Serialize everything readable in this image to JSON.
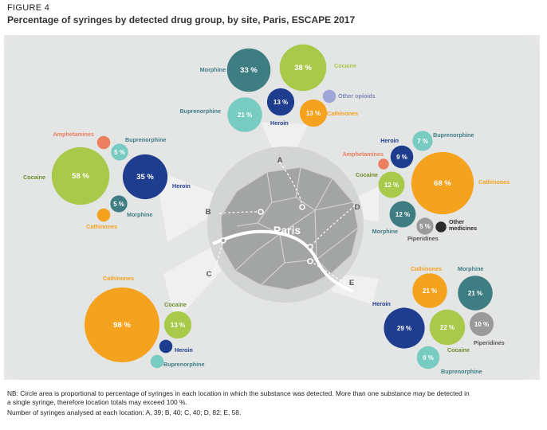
{
  "figure_label": "FIGURE 4",
  "title": "Percentage of syringes by detected drug group, by site, Paris, ESCAPE 2017",
  "map": {
    "city_label": "Paris"
  },
  "notes": {
    "line1": "NB: Circle area is proportional to percentage of syringes in each location in which the substance was detected. More than one substance may be detected in",
    "line2": "a single syringe, therefore location totals may exceed 100 %.",
    "line3": "Number of syringes analysed at each location: A, 39; B, 40; C, 40; D, 82; E, 58."
  },
  "colors": {
    "Morphine": "#3e7d82",
    "Cocaine": "#a8c94a",
    "Buprenorphine": "#78cbc1",
    "Heroin": "#1f3d8e",
    "Cathinones": "#f5a21f",
    "Other opioids": "#9ea7d7",
    "Amphetamines": "#ec7f60",
    "Piperidines": "#9a9a9a",
    "Other medicines": "#2b2b2b"
  },
  "chart_data": {
    "type": "bubble",
    "title": "Percentage of syringes by detected drug group, by site, Paris, ESCAPE 2017",
    "unit": "%",
    "sites": [
      {
        "site": "A",
        "series": [
          {
            "name": "Morphine",
            "value": 33,
            "label": "33 %"
          },
          {
            "name": "Cocaine",
            "value": 38,
            "label": "38 %"
          },
          {
            "name": "Buprenorphine",
            "value": 21,
            "label": "21 %"
          },
          {
            "name": "Heroin",
            "value": 13,
            "label": "13 %"
          },
          {
            "name": "Other opioids",
            "value": 3,
            "label": ""
          },
          {
            "name": "Cathinones",
            "value": 13,
            "label": "13 %"
          }
        ]
      },
      {
        "site": "B",
        "series": [
          {
            "name": "Amphetamines",
            "value": 3,
            "label": ""
          },
          {
            "name": "Buprenorphine",
            "value": 5,
            "label": "5 %"
          },
          {
            "name": "Cocaine",
            "value": 58,
            "label": "58 %"
          },
          {
            "name": "Heroin",
            "value": 35,
            "label": "35 %"
          },
          {
            "name": "Morphine",
            "value": 5,
            "label": "5 %"
          },
          {
            "name": "Cathinones",
            "value": 3,
            "label": ""
          }
        ]
      },
      {
        "site": "C",
        "series": [
          {
            "name": "Cathinones",
            "value": 98,
            "label": "98 %"
          },
          {
            "name": "Cocaine",
            "value": 13,
            "label": "13 %"
          },
          {
            "name": "Heroin",
            "value": 3,
            "label": ""
          },
          {
            "name": "Buprenorphine",
            "value": 3,
            "label": ""
          }
        ]
      },
      {
        "site": "D",
        "series": [
          {
            "name": "Heroin",
            "value": 9,
            "label": "9 %"
          },
          {
            "name": "Buprenorphine",
            "value": 7,
            "label": "7 %"
          },
          {
            "name": "Amphetamines",
            "value": 2,
            "label": ""
          },
          {
            "name": "Cocaine",
            "value": 12,
            "label": "12 %"
          },
          {
            "name": "Cathinones",
            "value": 68,
            "label": "68 %"
          },
          {
            "name": "Morphine",
            "value": 12,
            "label": "12 %"
          },
          {
            "name": "Piperidines",
            "value": 5,
            "label": "5 %"
          },
          {
            "name": "Other medicines",
            "value": 2,
            "label": ""
          }
        ]
      },
      {
        "site": "E",
        "series": [
          {
            "name": "Cathinones",
            "value": 21,
            "label": "21 %"
          },
          {
            "name": "Morphine",
            "value": 21,
            "label": "21 %"
          },
          {
            "name": "Heroin",
            "value": 29,
            "label": "29 %"
          },
          {
            "name": "Cocaine",
            "value": 22,
            "label": "22 %"
          },
          {
            "name": "Piperidines",
            "value": 10,
            "label": "10 %"
          },
          {
            "name": "Buprenorphine",
            "value": 9,
            "label": "9 %"
          }
        ]
      }
    ],
    "legend_labels": {
      "a_morphine": "Morphine",
      "a_cocaine": "Cocaine",
      "a_buprenorphine": "Buprenorphine",
      "a_other_opioids": "Other opioids",
      "a_heroin": "Heroin",
      "a_cathinones": "Cathinones",
      "b_amphetamines": "Amphetamines",
      "b_buprenorphine": "Buprenorphine",
      "b_cocaine": "Cocaine",
      "b_heroin": "Heroin",
      "b_morphine": "Morphine",
      "b_cathinones": "Cathinones",
      "c_cathinones": "Cathinones",
      "c_cocaine": "Cocaine",
      "c_heroin": "Heroin",
      "c_buprenorphine": "Buprenorphine",
      "d_heroin": "Heroin",
      "d_buprenorphine": "Buprenorphine",
      "d_amphetamines": "Amphetamines",
      "d_cocaine": "Cocaine",
      "d_cathinones": "Cathinones",
      "d_morphine": "Morphine",
      "d_piperidines": "Piperidines",
      "d_other_medicines_1": "Other",
      "d_other_medicines_2": "medicines",
      "e_cathinones": "Cathinones",
      "e_morphine": "Morphine",
      "e_heroin": "Heroin",
      "e_cocaine": "Cocaine",
      "e_piperidines": "Piperidines",
      "e_buprenorphine": "Buprenorphine"
    }
  }
}
